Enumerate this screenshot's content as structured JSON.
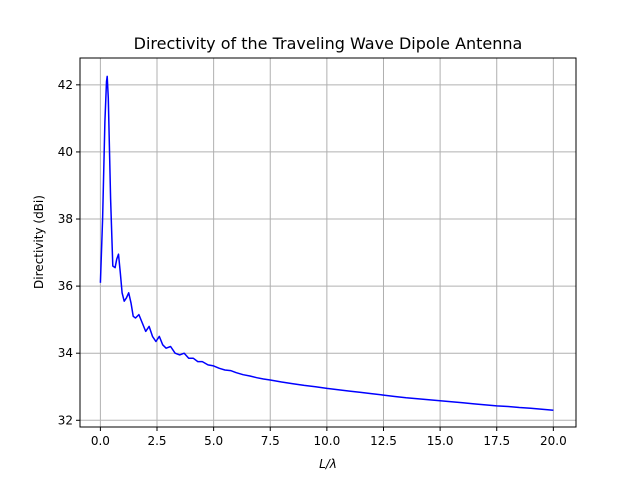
{
  "chart_data": {
    "type": "line",
    "title": "Directivity of the Traveling Wave Dipole Antenna",
    "xlabel": "L/λ",
    "ylabel": "Directivity (dBi)",
    "xlim": [
      -0.9,
      21.0
    ],
    "ylim": [
      31.8,
      42.8
    ],
    "xticks": [
      0.0,
      2.5,
      5.0,
      7.5,
      10.0,
      12.5,
      15.0,
      17.5,
      20.0
    ],
    "xtick_labels": [
      "0.0",
      "2.5",
      "5.0",
      "7.5",
      "10.0",
      "12.5",
      "15.0",
      "17.5",
      "20.0"
    ],
    "yticks": [
      32,
      34,
      36,
      38,
      40,
      42
    ],
    "ytick_labels": [
      "32",
      "34",
      "36",
      "38",
      "40",
      "42"
    ],
    "grid": true,
    "series": [
      {
        "color": "#0000ff",
        "x": [
          0.0,
          0.1,
          0.2,
          0.27,
          0.3,
          0.35,
          0.45,
          0.55,
          0.65,
          0.72,
          0.8,
          0.88,
          0.96,
          1.05,
          1.15,
          1.25,
          1.35,
          1.45,
          1.55,
          1.7,
          1.85,
          2.0,
          2.15,
          2.3,
          2.45,
          2.6,
          2.75,
          2.9,
          3.1,
          3.3,
          3.5,
          3.7,
          3.9,
          4.1,
          4.3,
          4.5,
          4.75,
          5.0,
          5.25,
          5.5,
          5.75,
          6.0,
          6.3,
          6.6,
          6.9,
          7.2,
          7.5,
          8.0,
          8.5,
          9.0,
          9.5,
          10.0,
          10.5,
          11.0,
          11.5,
          12.0,
          12.5,
          13.0,
          13.5,
          14.0,
          14.5,
          15.0,
          15.5,
          16.0,
          16.5,
          17.0,
          17.5,
          18.0,
          18.5,
          19.0,
          19.5,
          20.0
        ],
        "y": [
          36.1,
          38.0,
          40.9,
          42.1,
          42.25,
          41.6,
          38.6,
          36.6,
          36.55,
          36.8,
          36.95,
          36.4,
          35.8,
          35.55,
          35.65,
          35.8,
          35.5,
          35.1,
          35.05,
          35.15,
          34.9,
          34.65,
          34.8,
          34.5,
          34.35,
          34.5,
          34.25,
          34.15,
          34.2,
          34.0,
          33.95,
          34.0,
          33.85,
          33.85,
          33.75,
          33.75,
          33.65,
          33.62,
          33.55,
          33.5,
          33.48,
          33.42,
          33.36,
          33.32,
          33.27,
          33.23,
          33.2,
          33.14,
          33.09,
          33.04,
          33.0,
          32.95,
          32.91,
          32.87,
          32.83,
          32.79,
          32.75,
          32.71,
          32.67,
          32.64,
          32.61,
          32.58,
          32.55,
          32.52,
          32.49,
          32.46,
          32.43,
          32.41,
          32.38,
          32.36,
          32.33,
          32.3
        ]
      }
    ]
  }
}
